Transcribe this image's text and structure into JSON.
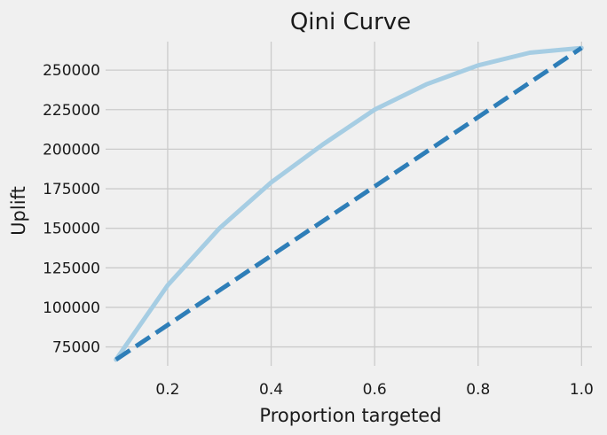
{
  "chart_data": {
    "type": "line",
    "title": "Qini Curve",
    "xlabel": "Proportion targeted",
    "ylabel": "Uplift",
    "xlim": [
      0.08,
      1.02
    ],
    "ylim": [
      63000,
      268000
    ],
    "x_ticks": [
      0.2,
      0.4,
      0.6,
      0.8,
      1.0
    ],
    "x_tick_labels": [
      "0.2",
      "0.4",
      "0.6",
      "0.8",
      "1.0"
    ],
    "y_ticks": [
      75000,
      100000,
      125000,
      150000,
      175000,
      200000,
      225000,
      250000
    ],
    "y_tick_labels": [
      "75000",
      "100000",
      "125000",
      "150000",
      "175000",
      "200000",
      "225000",
      "250000"
    ],
    "grid": true,
    "series": [
      {
        "style": "solid",
        "color": "#a6cde3",
        "x": [
          0.1,
          0.2,
          0.3,
          0.4,
          0.5,
          0.6,
          0.7,
          0.8,
          0.9,
          1.0
        ],
        "y": [
          67000,
          114000,
          150000,
          179000,
          203000,
          225000,
          241000,
          253000,
          261000,
          264000
        ]
      },
      {
        "style": "dashed",
        "color": "#2e7eb8",
        "x": [
          0.1,
          1.0
        ],
        "y": [
          67000,
          264000
        ]
      }
    ]
  }
}
